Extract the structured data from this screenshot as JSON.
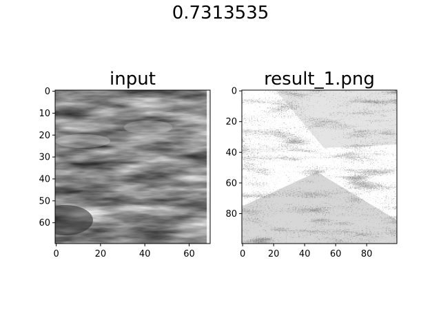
{
  "figure": {
    "suptitle": "0.7313535"
  },
  "chart_data": [
    {
      "type": "heatmap",
      "title": "input",
      "xlabel": "",
      "ylabel": "",
      "colormap": "gray",
      "image_size": [
        70,
        70
      ],
      "xlim": [
        -0.5,
        69.5
      ],
      "ylim": [
        69.5,
        -0.5
      ],
      "xticks": [
        0,
        20,
        40,
        60
      ],
      "yticks": [
        0,
        10,
        20,
        30,
        40,
        50,
        60
      ],
      "description_of_image_pixels": "grayscale texture"
    },
    {
      "type": "heatmap",
      "title": "result_1.png",
      "xlabel": "",
      "ylabel": "",
      "colormap": "gray",
      "image_size": [
        100,
        100
      ],
      "xlim": [
        -0.5,
        99.5
      ],
      "ylim": [
        99.5,
        -0.5
      ],
      "xticks": [
        0,
        20,
        40,
        60,
        80
      ],
      "yticks": [
        0,
        20,
        40,
        60,
        80
      ],
      "description_of_image_pixels": "grayscale texture"
    }
  ],
  "colors": {
    "axis": "#000000",
    "background": "#ffffff"
  }
}
